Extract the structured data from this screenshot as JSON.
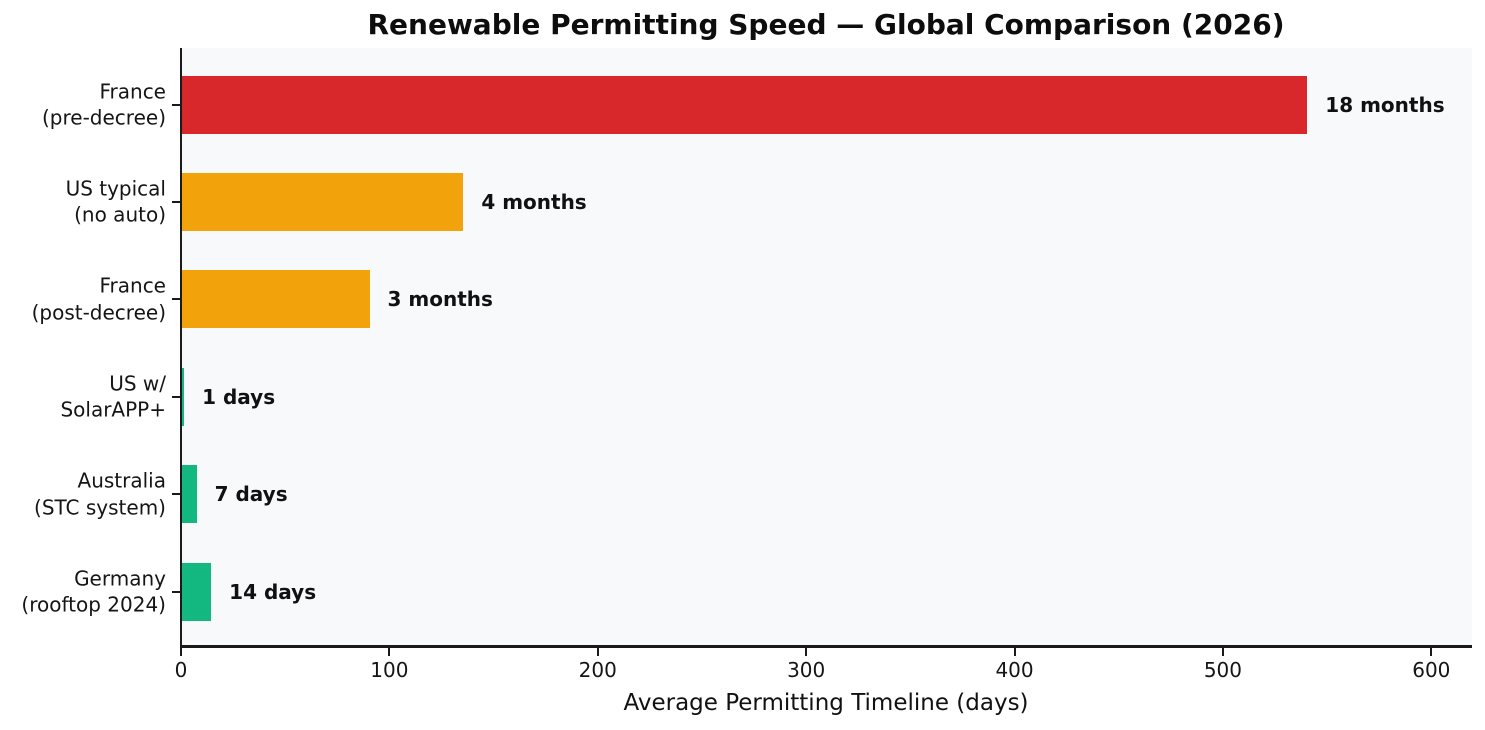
{
  "chart_data": {
    "type": "bar",
    "orientation": "horizontal",
    "title": "Renewable Permitting Speed — Global Comparison (2026)",
    "xlabel": "Average Permitting Timeline (days)",
    "xlim": [
      0,
      620
    ],
    "x_ticks": [
      0,
      100,
      200,
      300,
      400,
      500,
      600
    ],
    "grid": false,
    "legend": false,
    "figure_background": "#ffffff",
    "plot_background": "#f8f9fb",
    "axis_color": "#1a1a1a",
    "text_color": "#111111",
    "categories": [
      {
        "line1": "France",
        "line2": "(pre-decree)"
      },
      {
        "line1": "US typical",
        "line2": "(no auto)"
      },
      {
        "line1": "France",
        "line2": "(post-decree)"
      },
      {
        "line1": "US w/",
        "line2": "SolarAPP+"
      },
      {
        "line1": "Australia",
        "line2": "(STC system)"
      },
      {
        "line1": "Germany",
        "line2": "(rooftop 2024)"
      }
    ],
    "values": [
      540,
      135,
      90,
      1,
      7,
      14
    ],
    "value_unit": "days",
    "bar_labels": [
      "18 months",
      "4 months",
      "3 months",
      "1 days",
      "7 days",
      "14 days"
    ],
    "bar_colors": [
      "#d9282c",
      "#f2a30c",
      "#f2a30c",
      "#13b881",
      "#13b881",
      "#13b881"
    ]
  }
}
